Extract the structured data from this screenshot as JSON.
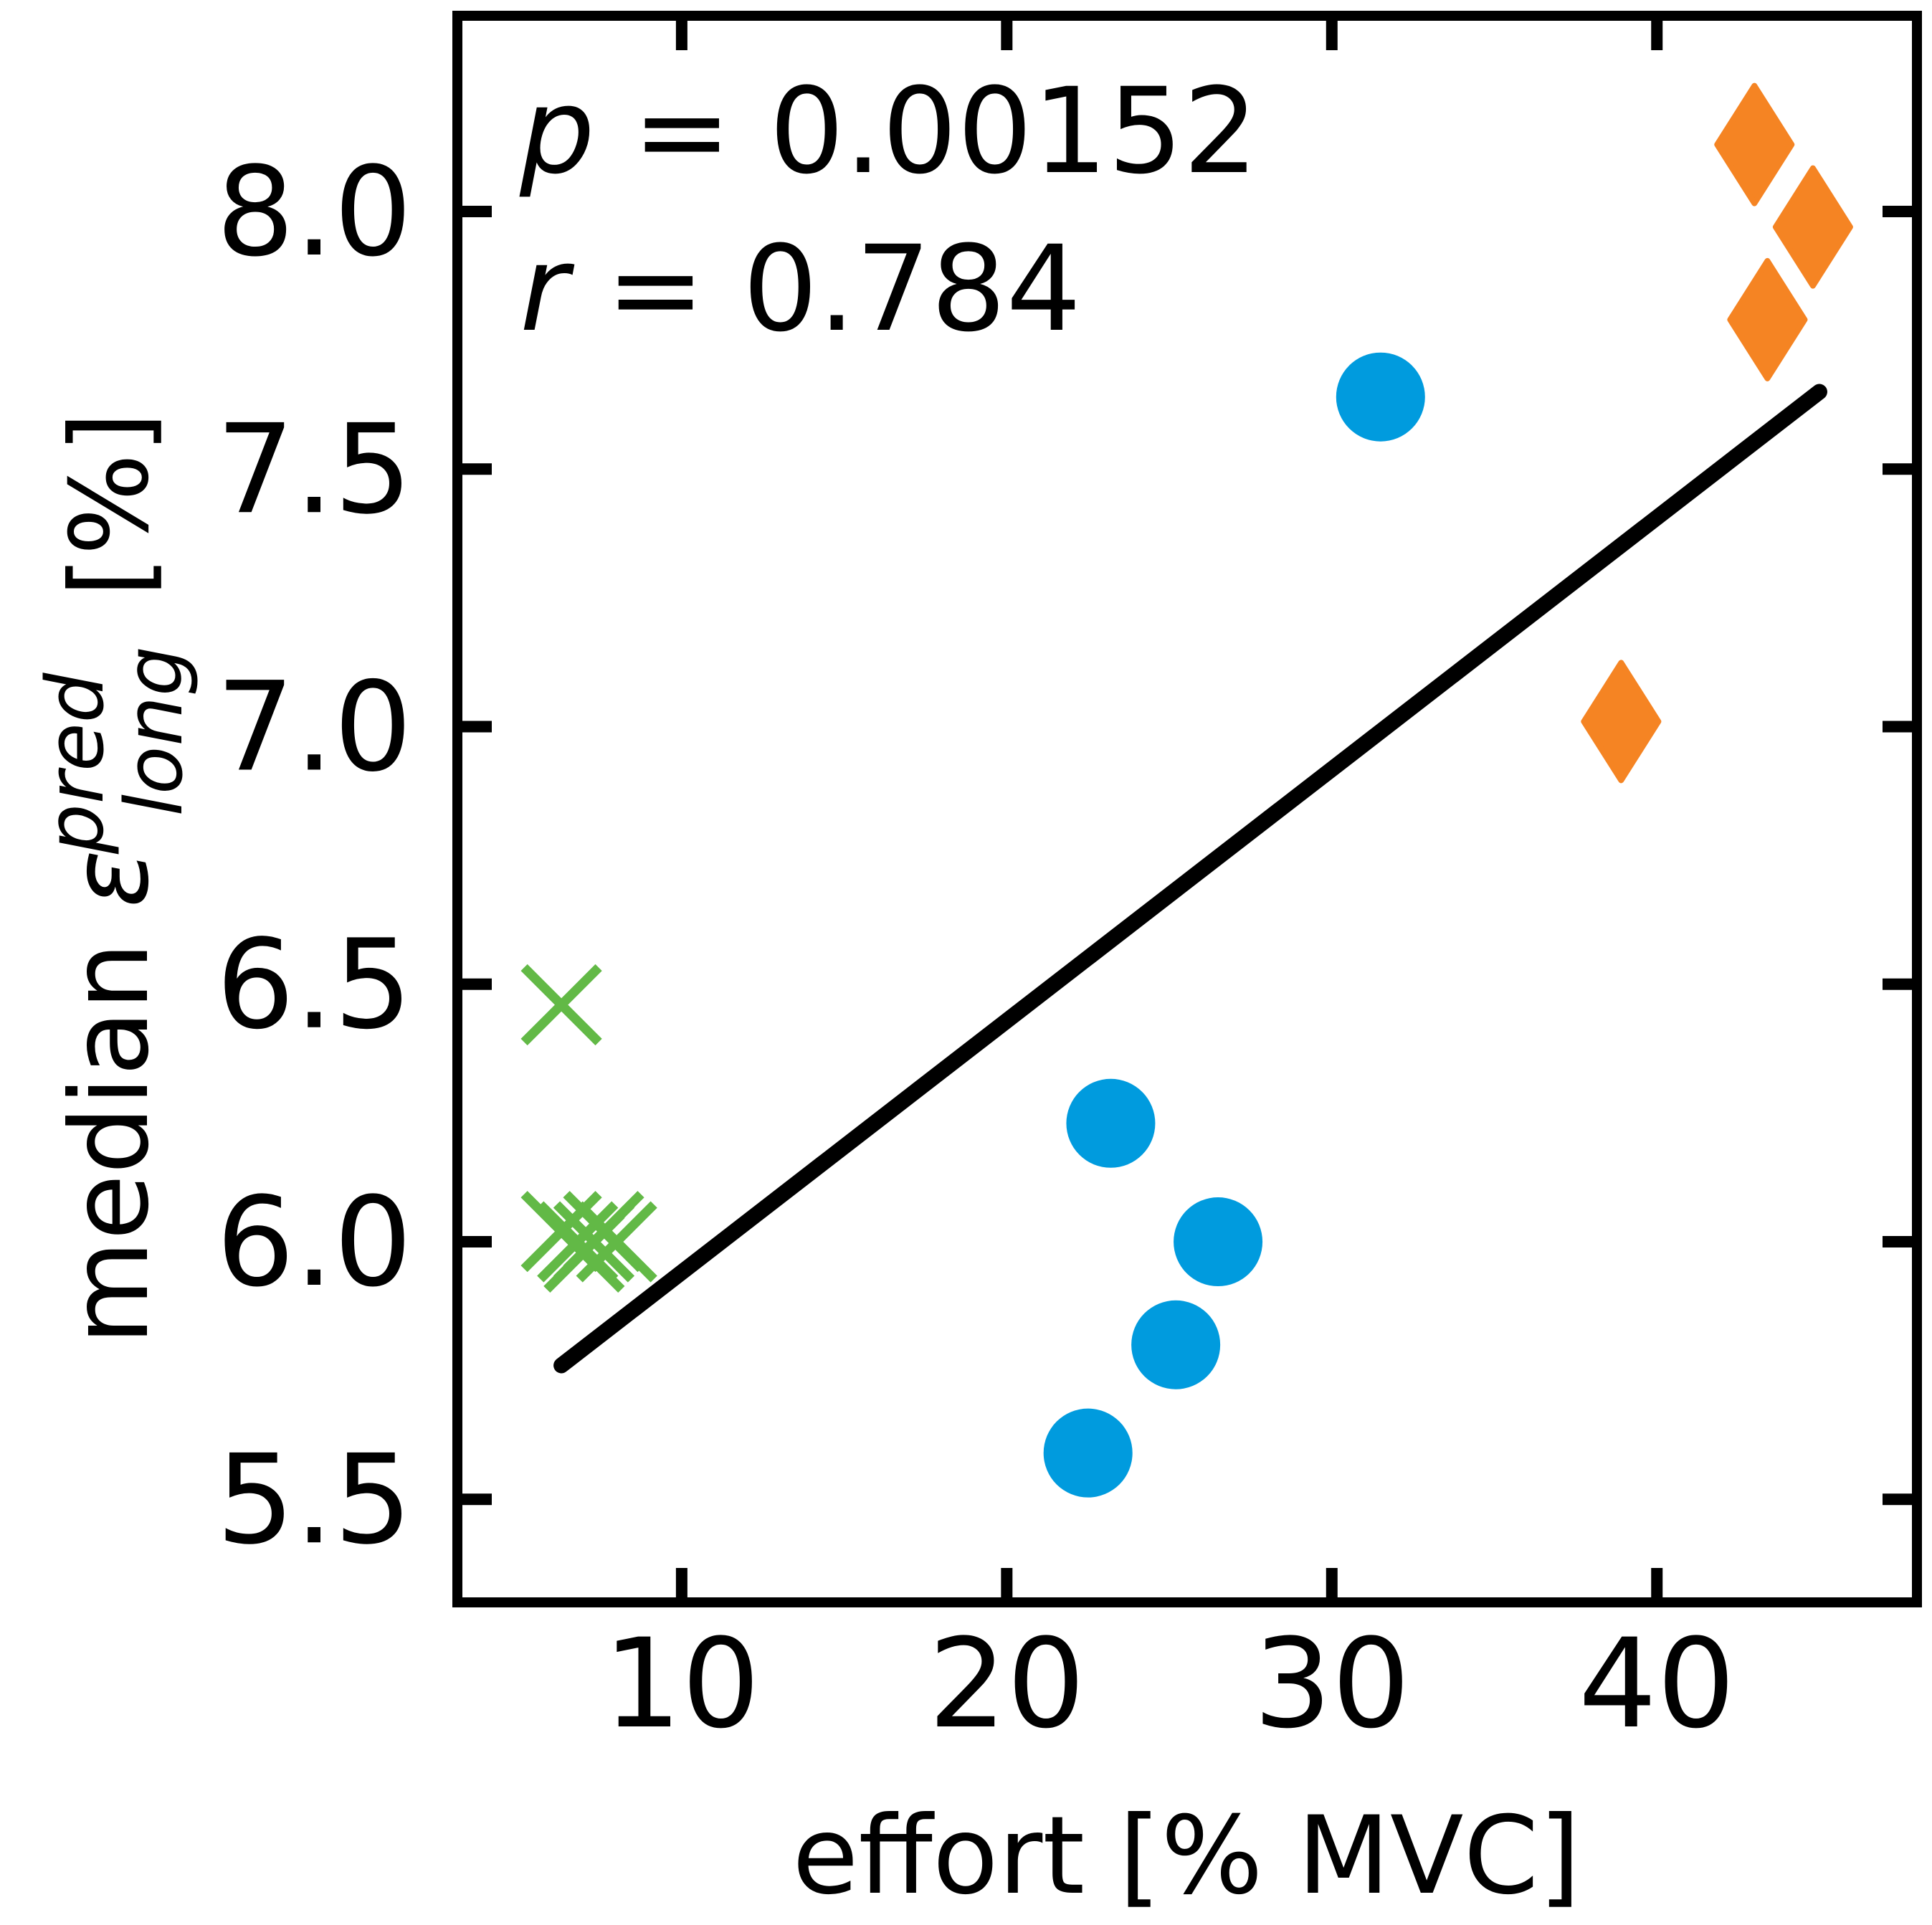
{
  "chart_data": {
    "type": "scatter",
    "title": "",
    "xlabel": "effort [% MVC]",
    "ylabel": {
      "prefix": "median ",
      "symbol": "ε",
      "superscript": "pred",
      "subscript": "long",
      "suffix": " [%]"
    },
    "xlim": [
      3.1,
      48.0
    ],
    "ylim": [
      5.3,
      8.38
    ],
    "xticks": [
      10,
      20,
      30,
      40
    ],
    "yticks": [
      5.5,
      6.0,
      6.5,
      7.0,
      7.5,
      8.0
    ],
    "xtick_labels": [
      "10",
      "20",
      "30",
      "40"
    ],
    "ytick_labels": [
      "5.5",
      "6.0",
      "6.5",
      "7.0",
      "7.5",
      "8.0"
    ],
    "grid": false,
    "legend": null,
    "annotations": [
      {
        "var": "p",
        "eq": " = 0.00152"
      },
      {
        "var": "r",
        "eq": " = 0.784"
      }
    ],
    "series": [
      {
        "marker": "x",
        "color": "#62b946",
        "points": [
          {
            "x": 6.3,
            "y": 6.46
          },
          {
            "x": 6.3,
            "y": 6.02
          },
          {
            "x": 6.8,
            "y": 6.0
          },
          {
            "x": 7.3,
            "y": 6.0
          },
          {
            "x": 7.6,
            "y": 6.02
          },
          {
            "x": 8.0,
            "y": 6.0
          },
          {
            "x": 7.0,
            "y": 5.98
          }
        ]
      },
      {
        "marker": "circle",
        "color": "#009bde",
        "points": [
          {
            "x": 23.2,
            "y": 6.23
          },
          {
            "x": 26.5,
            "y": 6.0
          },
          {
            "x": 25.2,
            "y": 5.8
          },
          {
            "x": 22.5,
            "y": 5.59
          },
          {
            "x": 31.5,
            "y": 7.64
          }
        ]
      },
      {
        "marker": "diamond",
        "color": "#f58423",
        "points": [
          {
            "x": 43.0,
            "y": 8.13
          },
          {
            "x": 44.8,
            "y": 7.97
          },
          {
            "x": 43.4,
            "y": 7.79
          },
          {
            "x": 38.9,
            "y": 7.01
          }
        ]
      }
    ],
    "fit_line": {
      "color": "#000000",
      "x": [
        6.3,
        45.0
      ],
      "y": [
        5.76,
        7.65
      ]
    }
  }
}
